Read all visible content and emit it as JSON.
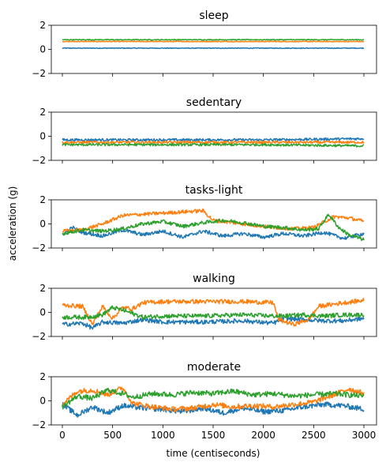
{
  "figure": {
    "ylabel": "acceleration (g)",
    "xlabel": "time (centiseconds)"
  },
  "chart_data": {
    "type": "line",
    "shared_x": true,
    "x_range": [
      0,
      3000
    ],
    "x_ticks": [
      0,
      500,
      1000,
      1500,
      2000,
      2500,
      3000
    ],
    "y_range": [
      -2,
      2
    ],
    "y_ticks": [
      -2,
      0,
      2
    ],
    "grid": false,
    "series_colors": [
      "#1f77b4",
      "#ff7f0e",
      "#2ca02c"
    ],
    "panels": [
      {
        "title": "sleep",
        "noise": 0.03,
        "series": [
          {
            "color": "#1f77b4",
            "points": [
              [
                0,
                0.1
              ],
              [
                1000,
                0.1
              ],
              [
                2000,
                0.1
              ],
              [
                3000,
                0.1
              ]
            ]
          },
          {
            "color": "#ff7f0e",
            "points": [
              [
                0,
                0.65
              ],
              [
                1000,
                0.65
              ],
              [
                2000,
                0.65
              ],
              [
                3000,
                0.65
              ]
            ]
          },
          {
            "color": "#2ca02c",
            "points": [
              [
                0,
                0.8
              ],
              [
                1000,
                0.8
              ],
              [
                2000,
                0.8
              ],
              [
                3000,
                0.8
              ]
            ]
          }
        ]
      },
      {
        "title": "sedentary",
        "noise": 0.1,
        "series": [
          {
            "color": "#1f77b4",
            "points": [
              [
                0,
                -0.3
              ],
              [
                1000,
                -0.3
              ],
              [
                2000,
                -0.3
              ],
              [
                3000,
                -0.2
              ]
            ]
          },
          {
            "color": "#ff7f0e",
            "points": [
              [
                0,
                -0.5
              ],
              [
                1000,
                -0.5
              ],
              [
                2000,
                -0.5
              ],
              [
                3000,
                -0.5
              ]
            ]
          },
          {
            "color": "#2ca02c",
            "points": [
              [
                0,
                -0.7
              ],
              [
                1000,
                -0.7
              ],
              [
                2000,
                -0.7
              ],
              [
                3000,
                -0.8
              ]
            ]
          }
        ]
      },
      {
        "title": "tasks-light",
        "noise": 0.15,
        "series": [
          {
            "color": "#1f77b4",
            "points": [
              [
                0,
                -0.9
              ],
              [
                100,
                -0.3
              ],
              [
                200,
                -0.7
              ],
              [
                400,
                -1.0
              ],
              [
                600,
                -0.5
              ],
              [
                800,
                -0.9
              ],
              [
                1000,
                -0.6
              ],
              [
                1200,
                -1.1
              ],
              [
                1400,
                -0.6
              ],
              [
                1600,
                -1.0
              ],
              [
                1800,
                -0.8
              ],
              [
                2000,
                -1.1
              ],
              [
                2200,
                -0.8
              ],
              [
                2400,
                -1.0
              ],
              [
                2600,
                -0.7
              ],
              [
                2800,
                -1.2
              ],
              [
                3000,
                -0.8
              ]
            ]
          },
          {
            "color": "#ff7f0e",
            "points": [
              [
                0,
                -0.6
              ],
              [
                200,
                -0.5
              ],
              [
                400,
                0.0
              ],
              [
                600,
                0.7
              ],
              [
                800,
                0.8
              ],
              [
                1000,
                0.9
              ],
              [
                1200,
                1.0
              ],
              [
                1400,
                1.1
              ],
              [
                1500,
                0.3
              ],
              [
                1700,
                0.1
              ],
              [
                1900,
                -0.1
              ],
              [
                2100,
                -0.3
              ],
              [
                2300,
                -0.4
              ],
              [
                2500,
                -0.3
              ],
              [
                2700,
                0.6
              ],
              [
                2850,
                0.5
              ],
              [
                3000,
                0.2
              ]
            ]
          },
          {
            "color": "#2ca02c",
            "points": [
              [
                0,
                -0.8
              ],
              [
                200,
                -0.5
              ],
              [
                400,
                -0.6
              ],
              [
                600,
                -0.4
              ],
              [
                800,
                0.0
              ],
              [
                1000,
                0.2
              ],
              [
                1200,
                -0.2
              ],
              [
                1400,
                0.1
              ],
              [
                1600,
                0.3
              ],
              [
                1800,
                0.1
              ],
              [
                2000,
                -0.2
              ],
              [
                2200,
                -0.3
              ],
              [
                2400,
                -0.5
              ],
              [
                2550,
                -0.4
              ],
              [
                2650,
                0.8
              ],
              [
                2750,
                -0.3
              ],
              [
                2850,
                -0.9
              ],
              [
                3000,
                -1.3
              ]
            ]
          }
        ]
      },
      {
        "title": "walking",
        "noise": 0.18,
        "series": [
          {
            "color": "#1f77b4",
            "points": [
              [
                0,
                -1.0
              ],
              [
                200,
                -0.9
              ],
              [
                300,
                -1.3
              ],
              [
                400,
                -0.8
              ],
              [
                600,
                -0.9
              ],
              [
                800,
                -0.6
              ],
              [
                1000,
                -0.8
              ],
              [
                1400,
                -0.8
              ],
              [
                1800,
                -0.7
              ],
              [
                2100,
                -0.9
              ],
              [
                2200,
                -0.5
              ],
              [
                2400,
                -0.6
              ],
              [
                2600,
                -0.7
              ],
              [
                2800,
                -0.7
              ],
              [
                3000,
                -0.5
              ]
            ]
          },
          {
            "color": "#ff7f0e",
            "points": [
              [
                0,
                0.6
              ],
              [
                200,
                0.5
              ],
              [
                300,
                -1.0
              ],
              [
                400,
                0.5
              ],
              [
                500,
                -0.5
              ],
              [
                600,
                0.4
              ],
              [
                700,
                0.3
              ],
              [
                800,
                0.8
              ],
              [
                1000,
                0.9
              ],
              [
                1400,
                0.9
              ],
              [
                1800,
                0.9
              ],
              [
                2100,
                0.8
              ],
              [
                2150,
                -0.6
              ],
              [
                2300,
                -1.0
              ],
              [
                2450,
                -0.6
              ],
              [
                2550,
                0.5
              ],
              [
                2800,
                0.8
              ],
              [
                3000,
                1.0
              ]
            ]
          },
          {
            "color": "#2ca02c",
            "points": [
              [
                0,
                -0.4
              ],
              [
                250,
                -0.4
              ],
              [
                400,
                -0.2
              ],
              [
                500,
                0.4
              ],
              [
                600,
                0.2
              ],
              [
                700,
                -0.1
              ],
              [
                800,
                -0.4
              ],
              [
                1000,
                -0.3
              ],
              [
                1400,
                -0.3
              ],
              [
                1800,
                -0.2
              ],
              [
                2100,
                -0.3
              ],
              [
                2200,
                -0.3
              ],
              [
                2400,
                -0.2
              ],
              [
                2600,
                -0.3
              ],
              [
                2800,
                -0.2
              ],
              [
                3000,
                -0.2
              ]
            ]
          }
        ]
      },
      {
        "title": "moderate",
        "noise": 0.22,
        "series": [
          {
            "color": "#1f77b4",
            "points": [
              [
                0,
                -0.3
              ],
              [
                150,
                -1.2
              ],
              [
                300,
                -0.5
              ],
              [
                450,
                -1.0
              ],
              [
                600,
                -0.4
              ],
              [
                800,
                -0.6
              ],
              [
                1000,
                -0.7
              ],
              [
                1200,
                -0.9
              ],
              [
                1400,
                -0.6
              ],
              [
                1600,
                -1.0
              ],
              [
                1800,
                -0.6
              ],
              [
                2000,
                -0.9
              ],
              [
                2200,
                -0.8
              ],
              [
                2400,
                -0.5
              ],
              [
                2600,
                -0.3
              ],
              [
                2800,
                -0.4
              ],
              [
                3000,
                -0.7
              ]
            ]
          },
          {
            "color": "#ff7f0e",
            "points": [
              [
                0,
                -0.3
              ],
              [
                150,
                0.8
              ],
              [
                300,
                0.9
              ],
              [
                450,
                0.5
              ],
              [
                600,
                1.1
              ],
              [
                700,
                -0.2
              ],
              [
                900,
                -0.5
              ],
              [
                1100,
                -0.7
              ],
              [
                1300,
                -0.6
              ],
              [
                1500,
                -0.3
              ],
              [
                1700,
                -0.5
              ],
              [
                1900,
                -0.4
              ],
              [
                2100,
                -0.5
              ],
              [
                2300,
                -0.3
              ],
              [
                2500,
                -0.1
              ],
              [
                2700,
                0.5
              ],
              [
                2850,
                1.0
              ],
              [
                3000,
                0.6
              ]
            ]
          },
          {
            "color": "#2ca02c",
            "points": [
              [
                0,
                -0.5
              ],
              [
                150,
                0.4
              ],
              [
                300,
                0.2
              ],
              [
                450,
                0.9
              ],
              [
                600,
                0.6
              ],
              [
                700,
                0.3
              ],
              [
                900,
                0.6
              ],
              [
                1100,
                0.5
              ],
              [
                1300,
                0.7
              ],
              [
                1500,
                0.6
              ],
              [
                1700,
                0.8
              ],
              [
                1900,
                0.5
              ],
              [
                2100,
                0.6
              ],
              [
                2300,
                0.4
              ],
              [
                2500,
                0.5
              ],
              [
                2700,
                0.6
              ],
              [
                2850,
                0.5
              ],
              [
                3000,
                0.4
              ]
            ]
          }
        ]
      }
    ]
  }
}
